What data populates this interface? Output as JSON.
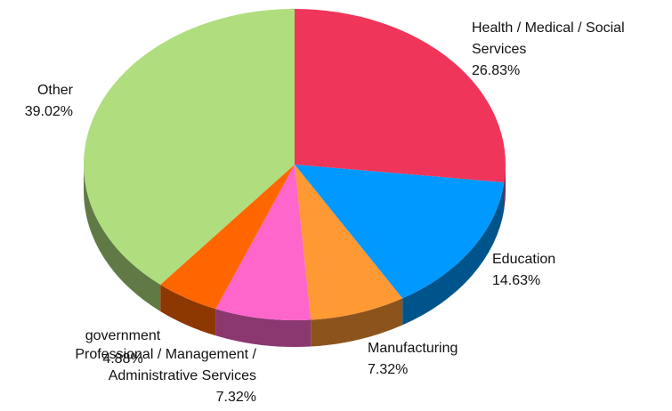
{
  "chart_data": {
    "type": "pie",
    "categories": [
      "Health / Medical / Social Services",
      "Education",
      "Manufacturing",
      "Professional / Management / Administrative Services",
      "government",
      "Other"
    ],
    "values": [
      26.83,
      14.63,
      7.32,
      7.32,
      4.88,
      39.02
    ],
    "value_labels": [
      "26.83%",
      "14.63%",
      "7.32%",
      "7.32%",
      "4.88%",
      "39.02%"
    ],
    "colors": [
      "#f0355a",
      "#0099ff",
      "#ff9933",
      "#ff66cc",
      "#ff6600",
      "#b0dd7d"
    ],
    "three_d": true
  }
}
